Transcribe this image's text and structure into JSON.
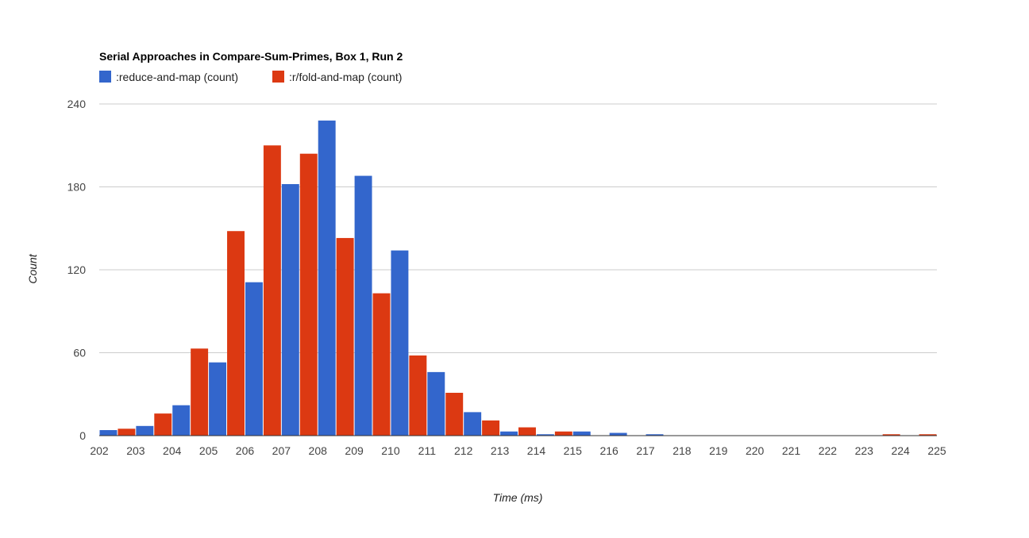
{
  "colors": {
    "reduce": "#3366cc",
    "fold": "#dc3912"
  },
  "chart_data": {
    "type": "bar",
    "title": "Serial Approaches in Compare-Sum-Primes, Box 1, Run 2",
    "xlabel": "Time (ms)",
    "ylabel": "Count",
    "legend_position": "top-left",
    "grid": true,
    "x_range": [
      202,
      225
    ],
    "ylim": [
      0,
      240
    ],
    "yticks": [
      "0",
      "60",
      "120",
      "180",
      "240"
    ],
    "xticks": [
      "202",
      "203",
      "204",
      "205",
      "206",
      "207",
      "208",
      "209",
      "210",
      "211",
      "212",
      "213",
      "214",
      "215",
      "216",
      "217",
      "218",
      "219",
      "220",
      "221",
      "222",
      "223",
      "224",
      "225"
    ],
    "series": [
      {
        "name": ":reduce-and-map (count)",
        "bins": [
          {
            "start": 202,
            "count": 4
          },
          {
            "start": 203,
            "count": 7
          },
          {
            "start": 204,
            "count": 22
          },
          {
            "start": 205,
            "count": 53
          },
          {
            "start": 206,
            "count": 111
          },
          {
            "start": 207,
            "count": 182
          },
          {
            "start": 208,
            "count": 228
          },
          {
            "start": 209,
            "count": 188
          },
          {
            "start": 210,
            "count": 134
          },
          {
            "start": 211,
            "count": 46
          },
          {
            "start": 212,
            "count": 17
          },
          {
            "start": 213,
            "count": 3
          },
          {
            "start": 214,
            "count": 1
          },
          {
            "start": 215,
            "count": 3
          },
          {
            "start": 216,
            "count": 2
          },
          {
            "start": 217,
            "count": 1
          }
        ]
      },
      {
        "name": ":r/fold-and-map (count)",
        "bins": [
          {
            "start": 202.5,
            "count": 5
          },
          {
            "start": 203.5,
            "count": 16
          },
          {
            "start": 204.5,
            "count": 63
          },
          {
            "start": 205.5,
            "count": 148
          },
          {
            "start": 206.5,
            "count": 210
          },
          {
            "start": 207.5,
            "count": 204
          },
          {
            "start": 208.5,
            "count": 143
          },
          {
            "start": 209.5,
            "count": 103
          },
          {
            "start": 210.5,
            "count": 58
          },
          {
            "start": 211.5,
            "count": 31
          },
          {
            "start": 212.5,
            "count": 11
          },
          {
            "start": 213.5,
            "count": 6
          },
          {
            "start": 214.5,
            "count": 3
          },
          {
            "start": 223.5,
            "count": 1
          },
          {
            "start": 224.5,
            "count": 1
          }
        ]
      }
    ]
  }
}
